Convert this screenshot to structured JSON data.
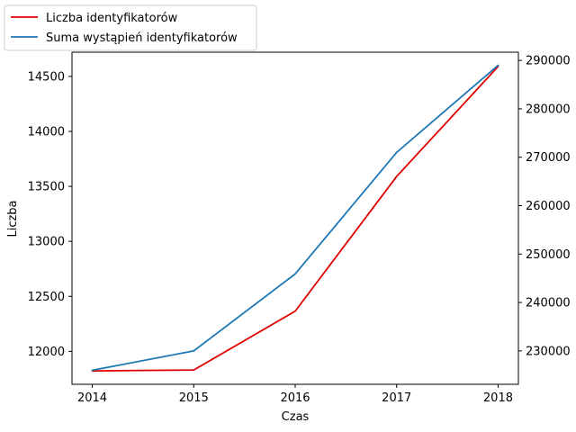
{
  "chart_data": {
    "type": "line",
    "x": [
      2014,
      2015,
      2016,
      2017,
      2018
    ],
    "xlabel": "Czas",
    "ylabel": "Liczba",
    "y2label": "",
    "xticks": [
      "2014",
      "2015",
      "2016",
      "2017",
      "2018"
    ],
    "yticks": [
      "12000",
      "12500",
      "13000",
      "13500",
      "14000",
      "14500"
    ],
    "y2ticks": [
      "230000",
      "240000",
      "250000",
      "260000",
      "270000",
      "280000",
      "290000"
    ],
    "ylim": [
      11700,
      14720
    ],
    "y2lim": [
      223100,
      291700
    ],
    "xlim": [
      2013.8,
      2018.2
    ],
    "grid": false,
    "legend_placement": "upper-left-outside",
    "series": [
      {
        "name": "Liczba identyfikatorów",
        "axis": "left",
        "color": "#e00000",
        "values": [
          11822,
          11830,
          12365,
          13590,
          14590
        ]
      },
      {
        "name": "Suma wystąpień identyfikatorów",
        "axis": "right",
        "color": "#1f77b4",
        "values": [
          226000,
          230000,
          245900,
          271000,
          289000
        ]
      }
    ]
  }
}
